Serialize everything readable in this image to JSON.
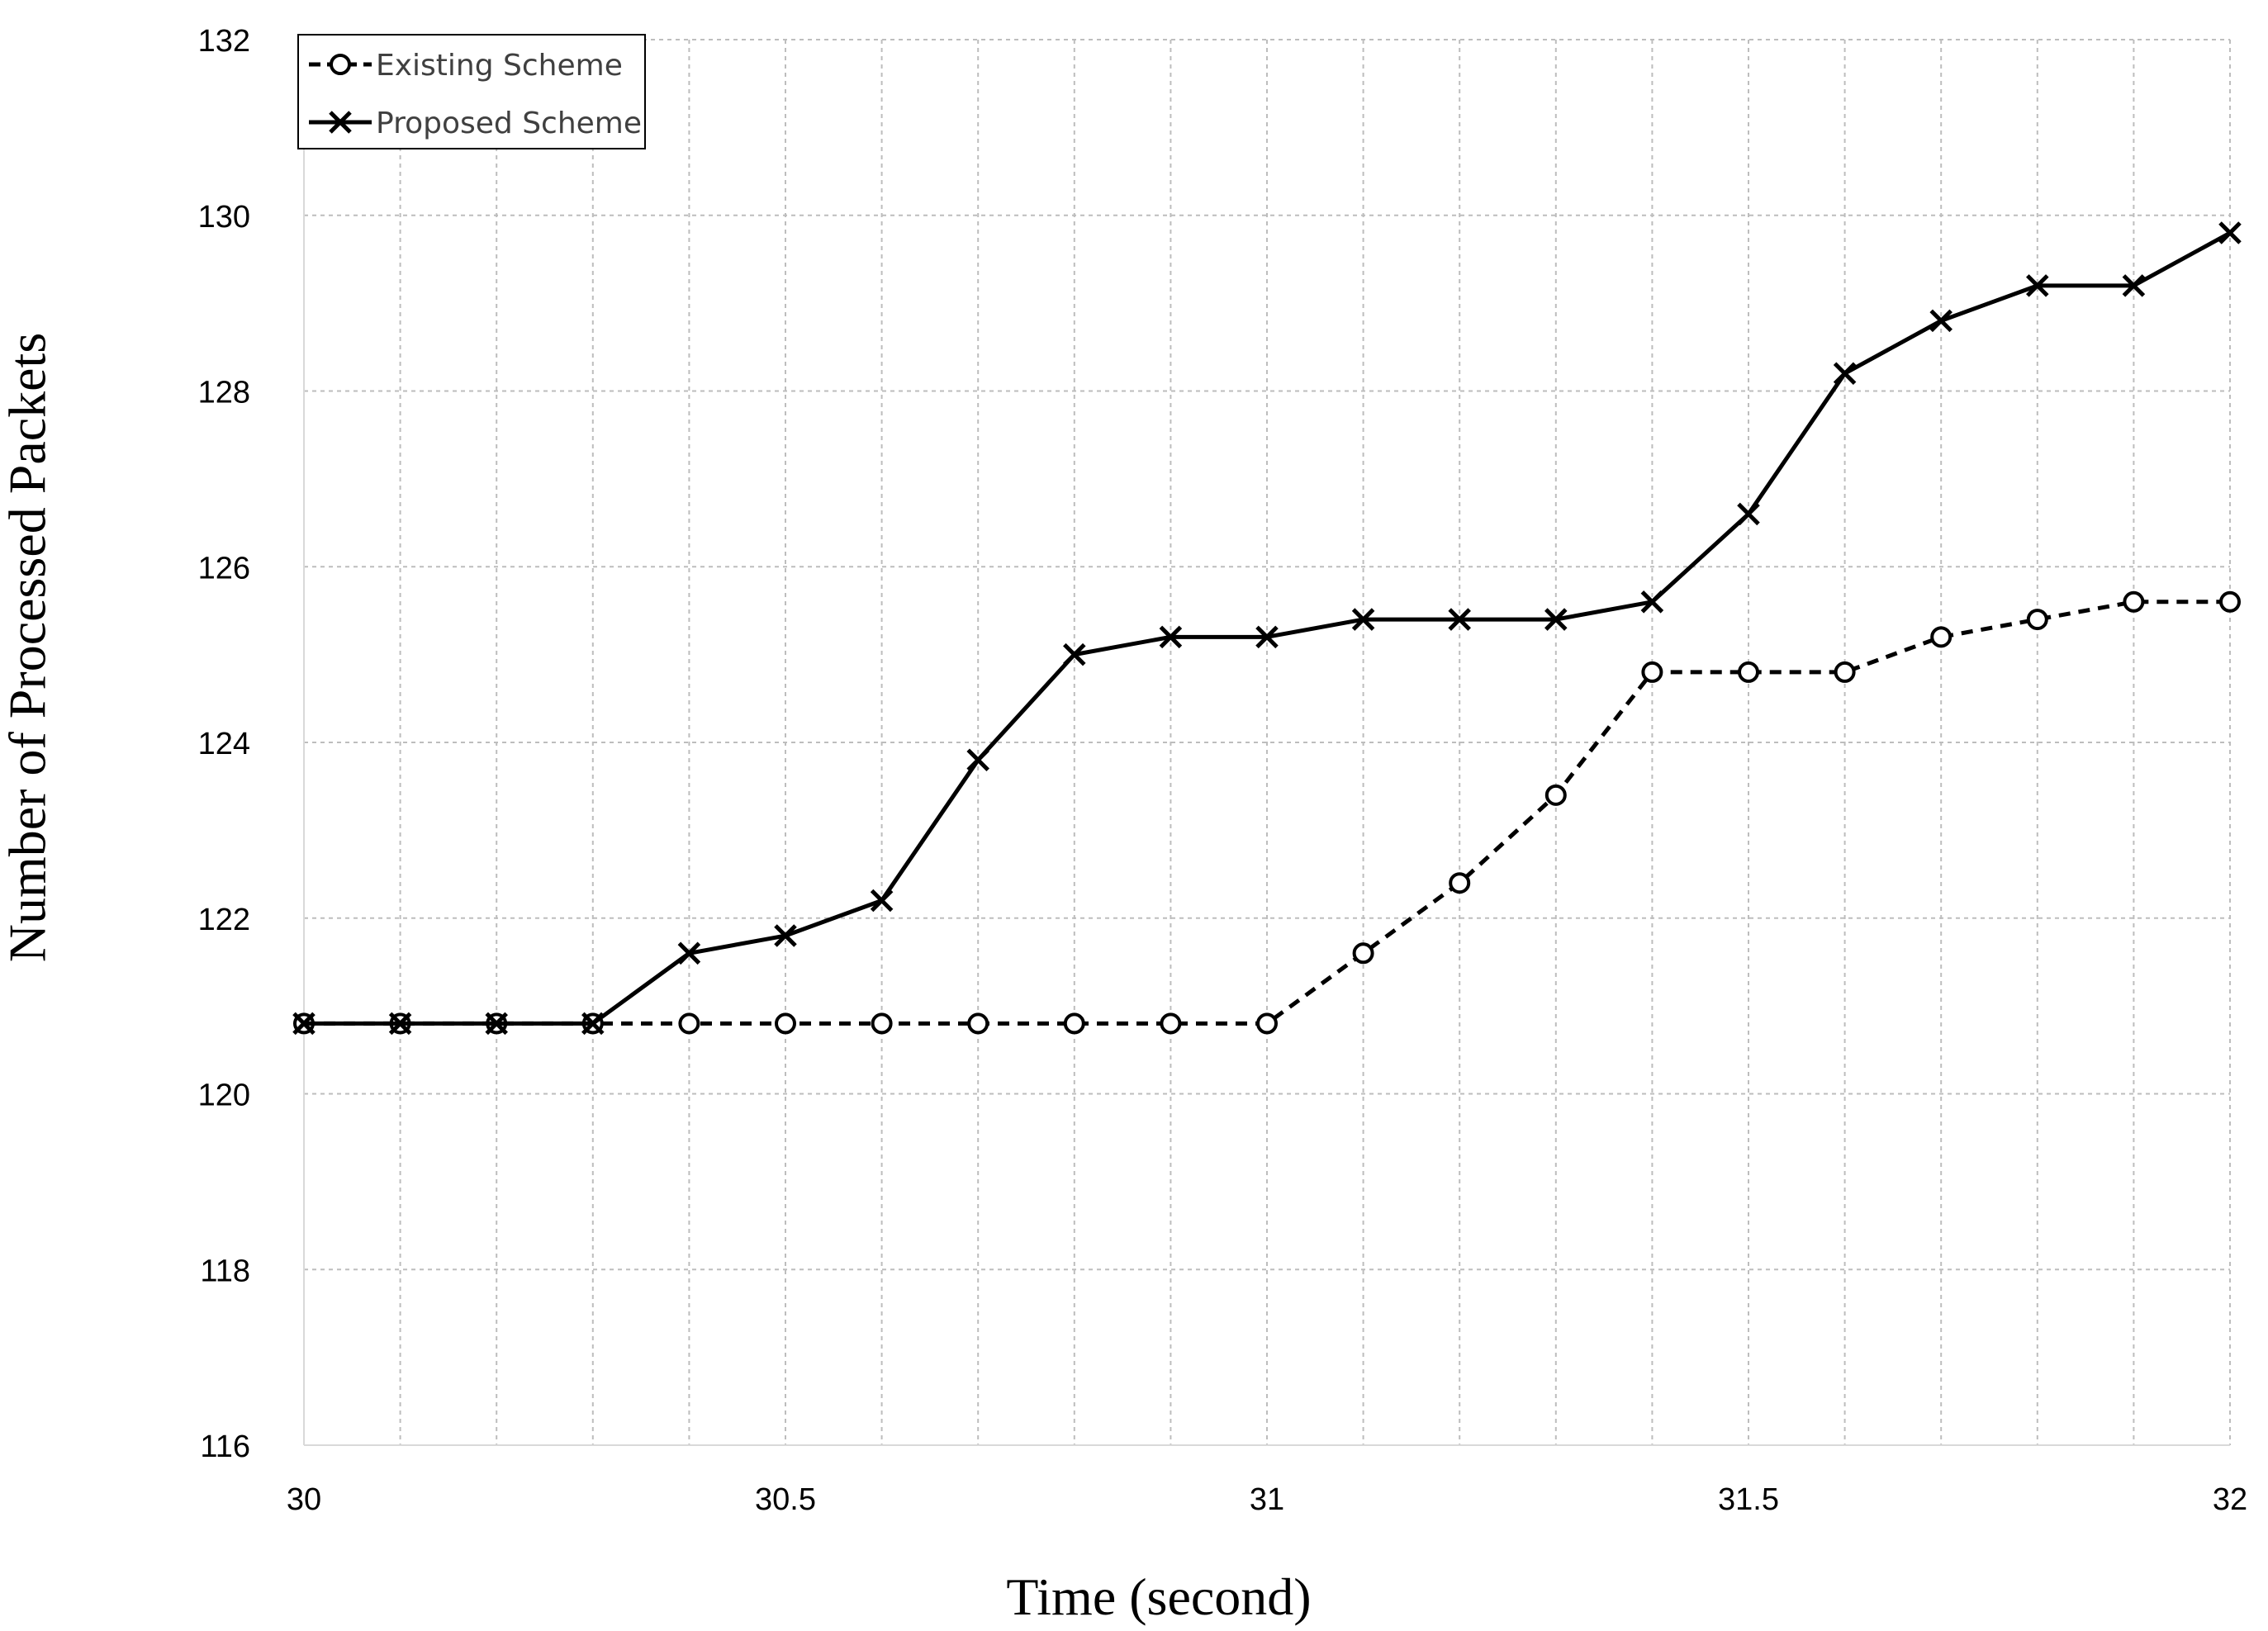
{
  "chart_data": {
    "type": "line",
    "xlabel": "Time (second)",
    "ylabel": "Number of Processed Packets",
    "xlim": [
      30,
      32
    ],
    "ylim": [
      116,
      132
    ],
    "x_ticks": [
      30,
      30.5,
      31,
      31.5,
      32
    ],
    "x_tick_labels": [
      "30",
      "30.5",
      "31",
      "31.5",
      "32"
    ],
    "x_grid_step": 0.1,
    "y_ticks": [
      116,
      118,
      120,
      122,
      124,
      126,
      128,
      130,
      132
    ],
    "y_tick_labels": [
      "116",
      "118",
      "120",
      "122",
      "124",
      "126",
      "128",
      "130",
      "132"
    ],
    "grid": true,
    "legend_position": "top-left",
    "x": [
      30,
      30.1,
      30.2,
      30.3,
      30.4,
      30.5,
      30.6,
      30.7,
      30.8,
      30.9,
      31,
      31.1,
      31.2,
      31.3,
      31.4,
      31.5,
      31.6,
      31.7,
      31.8,
      31.9,
      32
    ],
    "series": [
      {
        "name": "Existing Scheme",
        "line_style": "dashed",
        "marker": "circle",
        "color": "#000000",
        "values": [
          120.8,
          120.8,
          120.8,
          120.8,
          120.8,
          120.8,
          120.8,
          120.8,
          120.8,
          120.8,
          120.8,
          121.6,
          122.4,
          123.4,
          124.8,
          124.8,
          124.8,
          125.2,
          125.4,
          125.6,
          125.6
        ]
      },
      {
        "name": "Proposed Scheme",
        "line_style": "solid",
        "marker": "x",
        "color": "#000000",
        "values": [
          120.8,
          120.8,
          120.8,
          120.8,
          121.6,
          121.8,
          122.2,
          123.8,
          125.0,
          125.2,
          125.2,
          125.4,
          125.4,
          125.4,
          125.6,
          126.6,
          128.2,
          128.8,
          129.2,
          129.2,
          129.8
        ]
      }
    ]
  }
}
